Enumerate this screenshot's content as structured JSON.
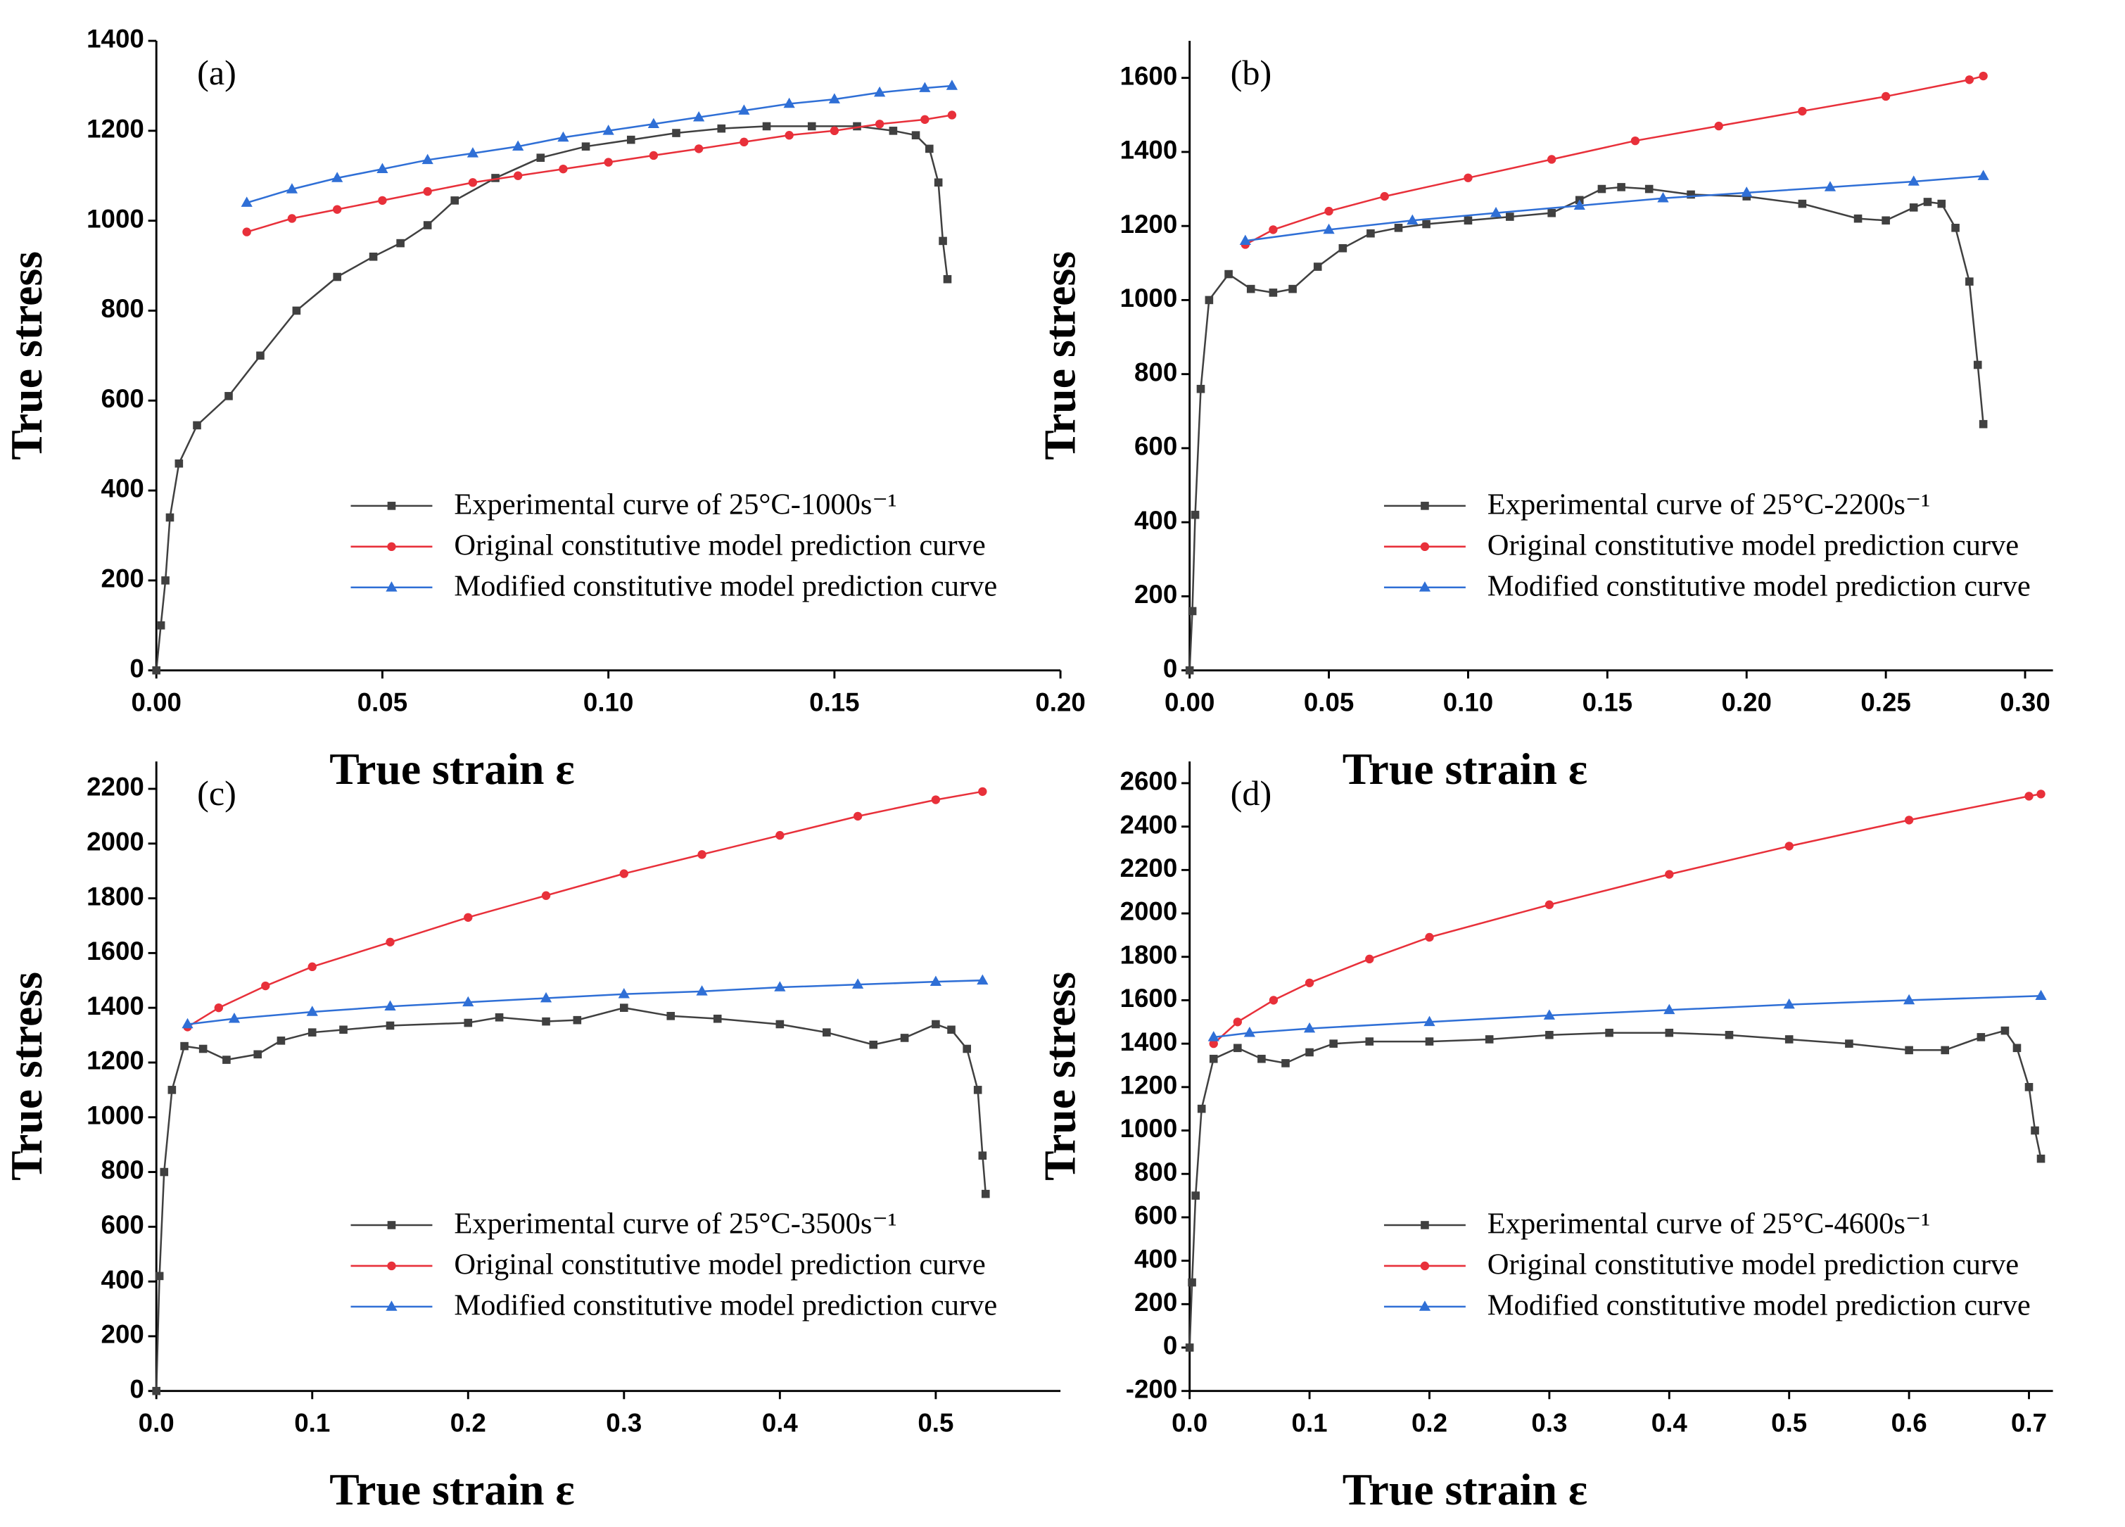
{
  "chart_data": [
    {
      "type": "line",
      "label": "(a)",
      "xlabel": "True strain ε",
      "ylabel": "True stress",
      "xlim": [
        0,
        0.2
      ],
      "ylim": [
        0,
        1400
      ],
      "xticks": [
        {
          "value": 0,
          "label": "0.00"
        },
        {
          "value": 0.05,
          "label": "0.05"
        },
        {
          "value": 0.1,
          "label": "0.10"
        },
        {
          "value": 0.15,
          "label": "0.15"
        },
        {
          "value": 0.2,
          "label": "0.20"
        }
      ],
      "yticks": [
        0,
        200,
        400,
        600,
        800,
        1000,
        1200,
        1400
      ],
      "series": [
        {
          "name": "Experimental curve of 25°C-1000s⁻¹",
          "color": "#404040",
          "marker": "square",
          "x": [
            0,
            0.001,
            0.002,
            0.003,
            0.005,
            0.009,
            0.016,
            0.023,
            0.031,
            0.04,
            0.048,
            0.054,
            0.06,
            0.066,
            0.075,
            0.085,
            0.095,
            0.105,
            0.115,
            0.125,
            0.135,
            0.145,
            0.155,
            0.163,
            0.168,
            0.171,
            0.173,
            0.174,
            0.175
          ],
          "values": [
            0,
            100,
            200,
            340,
            460,
            545,
            610,
            700,
            800,
            875,
            920,
            950,
            990,
            1045,
            1095,
            1140,
            1165,
            1180,
            1195,
            1205,
            1210,
            1210,
            1210,
            1200,
            1190,
            1160,
            1085,
            955,
            870
          ]
        },
        {
          "name": "Original constitutive model prediction curve",
          "color": "#e8303a",
          "marker": "circle",
          "x": [
            0.02,
            0.03,
            0.04,
            0.05,
            0.06,
            0.07,
            0.08,
            0.09,
            0.1,
            0.11,
            0.12,
            0.13,
            0.14,
            0.15,
            0.16,
            0.17,
            0.176
          ],
          "values": [
            975,
            1005,
            1025,
            1045,
            1065,
            1085,
            1100,
            1115,
            1130,
            1145,
            1160,
            1175,
            1190,
            1200,
            1215,
            1225,
            1235
          ]
        },
        {
          "name": "Modified constitutive model prediction curve",
          "color": "#2f6fd6",
          "marker": "triangle",
          "x": [
            0.02,
            0.03,
            0.04,
            0.05,
            0.06,
            0.07,
            0.08,
            0.09,
            0.1,
            0.11,
            0.12,
            0.13,
            0.14,
            0.15,
            0.16,
            0.17,
            0.176
          ],
          "values": [
            1040,
            1070,
            1095,
            1115,
            1135,
            1150,
            1165,
            1185,
            1200,
            1215,
            1230,
            1245,
            1260,
            1270,
            1285,
            1295,
            1300
          ]
        }
      ]
    },
    {
      "type": "line",
      "label": "(b)",
      "xlabel": "True strain ε",
      "ylabel": "True stress",
      "xlim": [
        0,
        0.31
      ],
      "ylim": [
        0,
        1700
      ],
      "xticks": [
        {
          "value": 0,
          "label": "0.00"
        },
        {
          "value": 0.05,
          "label": "0.05"
        },
        {
          "value": 0.1,
          "label": "0.10"
        },
        {
          "value": 0.15,
          "label": "0.15"
        },
        {
          "value": 0.2,
          "label": "0.20"
        },
        {
          "value": 0.25,
          "label": "0.25"
        },
        {
          "value": 0.3,
          "label": "0.30"
        }
      ],
      "yticks": [
        0,
        200,
        400,
        600,
        800,
        1000,
        1200,
        1400,
        1600
      ],
      "series": [
        {
          "name": "Experimental curve of 25°C-2200s⁻¹",
          "color": "#404040",
          "marker": "square",
          "x": [
            0,
            0.001,
            0.002,
            0.004,
            0.007,
            0.014,
            0.022,
            0.03,
            0.037,
            0.046,
            0.055,
            0.065,
            0.075,
            0.085,
            0.1,
            0.115,
            0.13,
            0.14,
            0.148,
            0.155,
            0.165,
            0.18,
            0.2,
            0.22,
            0.24,
            0.25,
            0.26,
            0.265,
            0.27,
            0.275,
            0.28,
            0.283,
            0.285
          ],
          "values": [
            0,
            160,
            420,
            760,
            1000,
            1070,
            1030,
            1020,
            1030,
            1090,
            1140,
            1180,
            1195,
            1205,
            1215,
            1225,
            1235,
            1270,
            1300,
            1305,
            1300,
            1285,
            1280,
            1260,
            1220,
            1215,
            1250,
            1265,
            1260,
            1195,
            1050,
            825,
            665
          ]
        },
        {
          "name": "Original constitutive model prediction curve",
          "color": "#e8303a",
          "marker": "circle",
          "x": [
            0.02,
            0.03,
            0.05,
            0.07,
            0.1,
            0.13,
            0.16,
            0.19,
            0.22,
            0.25,
            0.28,
            0.285
          ],
          "values": [
            1150,
            1190,
            1240,
            1280,
            1330,
            1380,
            1430,
            1470,
            1510,
            1550,
            1595,
            1605
          ]
        },
        {
          "name": "Modified constitutive model prediction curve",
          "color": "#2f6fd6",
          "marker": "triangle",
          "x": [
            0.02,
            0.05,
            0.08,
            0.11,
            0.14,
            0.17,
            0.2,
            0.23,
            0.26,
            0.285
          ],
          "values": [
            1160,
            1190,
            1215,
            1235,
            1255,
            1275,
            1290,
            1305,
            1320,
            1335
          ]
        }
      ]
    },
    {
      "type": "line",
      "label": "(c)",
      "xlabel": "True strain ε",
      "ylabel": "True stress",
      "xlim": [
        0,
        0.58
      ],
      "ylim": [
        0,
        2300
      ],
      "xticks": [
        {
          "value": 0,
          "label": "0.0"
        },
        {
          "value": 0.1,
          "label": "0.1"
        },
        {
          "value": 0.2,
          "label": "0.2"
        },
        {
          "value": 0.3,
          "label": "0.3"
        },
        {
          "value": 0.4,
          "label": "0.4"
        },
        {
          "value": 0.5,
          "label": "0.5"
        }
      ],
      "yticks": [
        0,
        200,
        400,
        600,
        800,
        1000,
        1200,
        1400,
        1600,
        1800,
        2000,
        2200
      ],
      "series": [
        {
          "name": "Experimental curve of 25°C-3500s⁻¹",
          "color": "#404040",
          "marker": "square",
          "x": [
            0,
            0.002,
            0.005,
            0.01,
            0.018,
            0.03,
            0.045,
            0.065,
            0.08,
            0.1,
            0.12,
            0.15,
            0.2,
            0.22,
            0.25,
            0.27,
            0.3,
            0.33,
            0.36,
            0.4,
            0.43,
            0.46,
            0.48,
            0.5,
            0.51,
            0.52,
            0.527,
            0.53,
            0.532
          ],
          "values": [
            0,
            420,
            800,
            1100,
            1260,
            1250,
            1210,
            1230,
            1280,
            1310,
            1320,
            1335,
            1345,
            1365,
            1350,
            1355,
            1400,
            1370,
            1360,
            1340,
            1310,
            1265,
            1290,
            1340,
            1320,
            1250,
            1100,
            860,
            720
          ]
        },
        {
          "name": "Original constitutive model prediction curve",
          "color": "#e8303a",
          "marker": "circle",
          "x": [
            0.02,
            0.04,
            0.07,
            0.1,
            0.15,
            0.2,
            0.25,
            0.3,
            0.35,
            0.4,
            0.45,
            0.5,
            0.53
          ],
          "values": [
            1330,
            1400,
            1480,
            1550,
            1640,
            1730,
            1810,
            1890,
            1960,
            2030,
            2100,
            2160,
            2190
          ]
        },
        {
          "name": "Modified constitutive model prediction curve",
          "color": "#2f6fd6",
          "marker": "triangle",
          "x": [
            0.02,
            0.05,
            0.1,
            0.15,
            0.2,
            0.25,
            0.3,
            0.35,
            0.4,
            0.45,
            0.5,
            0.53
          ],
          "values": [
            1340,
            1360,
            1385,
            1405,
            1420,
            1435,
            1450,
            1460,
            1475,
            1485,
            1495,
            1500
          ]
        }
      ]
    },
    {
      "type": "line",
      "label": "(d)",
      "xlabel": "True strain ε",
      "ylabel": "True stress",
      "xlim": [
        0,
        0.72
      ],
      "ylim": [
        -200,
        2700
      ],
      "xticks": [
        {
          "value": 0,
          "label": "0.0"
        },
        {
          "value": 0.1,
          "label": "0.1"
        },
        {
          "value": 0.2,
          "label": "0.2"
        },
        {
          "value": 0.3,
          "label": "0.3"
        },
        {
          "value": 0.4,
          "label": "0.4"
        },
        {
          "value": 0.5,
          "label": "0.5"
        },
        {
          "value": 0.6,
          "label": "0.6"
        },
        {
          "value": 0.7,
          "label": "0.7"
        }
      ],
      "yticks": [
        -200,
        0,
        200,
        400,
        600,
        800,
        1000,
        1200,
        1400,
        1600,
        1800,
        2000,
        2200,
        2400,
        2600
      ],
      "series": [
        {
          "name": "Experimental curve of 25°C-4600s⁻¹",
          "color": "#404040",
          "marker": "square",
          "x": [
            0,
            0.002,
            0.005,
            0.01,
            0.02,
            0.04,
            0.06,
            0.08,
            0.1,
            0.12,
            0.15,
            0.2,
            0.25,
            0.3,
            0.35,
            0.4,
            0.45,
            0.5,
            0.55,
            0.6,
            0.63,
            0.66,
            0.68,
            0.69,
            0.7,
            0.705,
            0.71
          ],
          "values": [
            0,
            300,
            700,
            1100,
            1330,
            1380,
            1330,
            1310,
            1360,
            1400,
            1410,
            1410,
            1420,
            1440,
            1450,
            1450,
            1440,
            1420,
            1400,
            1370,
            1370,
            1430,
            1460,
            1380,
            1200,
            1000,
            870
          ]
        },
        {
          "name": "Original constitutive model prediction curve",
          "color": "#e8303a",
          "marker": "circle",
          "x": [
            0.02,
            0.04,
            0.07,
            0.1,
            0.15,
            0.2,
            0.3,
            0.4,
            0.5,
            0.6,
            0.7,
            0.71
          ],
          "values": [
            1400,
            1500,
            1600,
            1680,
            1790,
            1890,
            2040,
            2180,
            2310,
            2430,
            2540,
            2550
          ]
        },
        {
          "name": "Modified constitutive model prediction curve",
          "color": "#2f6fd6",
          "marker": "triangle",
          "x": [
            0.02,
            0.05,
            0.1,
            0.2,
            0.3,
            0.4,
            0.5,
            0.6,
            0.71
          ],
          "values": [
            1430,
            1450,
            1470,
            1500,
            1530,
            1555,
            1580,
            1600,
            1620
          ]
        }
      ]
    }
  ]
}
